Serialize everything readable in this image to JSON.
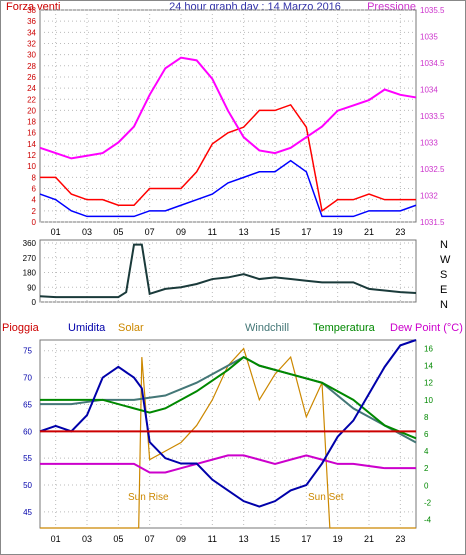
{
  "chart_data": [
    {
      "type": "line",
      "title": "24 hour graph day : 14 Marzo 2016",
      "left_axis_label": "Forza venti",
      "right_axis_label": "Pressione",
      "x_ticks": [
        "01",
        "03",
        "05",
        "07",
        "09",
        "11",
        "13",
        "15",
        "17",
        "19",
        "21",
        "23"
      ],
      "y_left_ticks": [
        "0",
        "2",
        "4",
        "6",
        "8",
        "10",
        "12",
        "14",
        "16",
        "18",
        "20",
        "22",
        "24",
        "26",
        "28",
        "30",
        "32",
        "34",
        "36",
        "38"
      ],
      "y_left_range": [
        0,
        38
      ],
      "y_right_ticks": [
        "1031.5",
        "1032",
        "1032.5",
        "1033",
        "1033.5",
        "1034",
        "1034.5",
        "1035",
        "1035.5"
      ],
      "y_right_range": [
        1031.5,
        1035.5
      ],
      "grid": true,
      "colors": {
        "gust": "#ff0000",
        "avg": "#0000ff",
        "pressure": "#ff00ff",
        "left_axis": "#cc0000",
        "right_axis": "#cc33cc"
      },
      "series": [
        {
          "hour": [
            0,
            1,
            2,
            3,
            4,
            5,
            6,
            7,
            8,
            9,
            10,
            11,
            12,
            13,
            14,
            15,
            16,
            17,
            18,
            19,
            20,
            21,
            22,
            23,
            24
          ],
          "values": [
            8,
            8,
            5,
            4,
            4,
            3,
            3,
            6,
            6,
            6,
            9,
            14,
            16,
            17,
            20,
            20,
            21,
            17,
            2,
            4,
            4,
            5,
            4,
            4,
            4
          ]
        },
        {
          "hour": [
            0,
            1,
            2,
            3,
            4,
            5,
            6,
            7,
            8,
            9,
            10,
            11,
            12,
            13,
            14,
            15,
            16,
            17,
            18,
            19,
            20,
            21,
            22,
            23,
            24
          ],
          "values": [
            5,
            4,
            2,
            1,
            1,
            1,
            1,
            2,
            2,
            3,
            4,
            5,
            7,
            8,
            9,
            9,
            11,
            9,
            1,
            1,
            1,
            2,
            2,
            2,
            3
          ]
        },
        {
          "hour": [
            0,
            1,
            2,
            3,
            4,
            5,
            6,
            7,
            8,
            9,
            10,
            11,
            12,
            13,
            14,
            15,
            16,
            17,
            18,
            19,
            20,
            21,
            22,
            23,
            24
          ],
          "values": [
            1032.9,
            1032.8,
            1032.7,
            1032.75,
            1032.8,
            1033.0,
            1033.3,
            1033.9,
            1034.4,
            1034.6,
            1034.55,
            1034.2,
            1033.6,
            1033.1,
            1032.85,
            1032.8,
            1032.9,
            1033.1,
            1033.3,
            1033.6,
            1033.7,
            1033.8,
            1034.0,
            1033.9,
            1033.85
          ]
        }
      ]
    },
    {
      "type": "line",
      "y_ticks": [
        "0",
        "90",
        "180",
        "270",
        "360"
      ],
      "y_range": [
        0,
        360
      ],
      "compass_labels": [
        "N",
        "W",
        "S",
        "E",
        "N"
      ],
      "line_color": "#1a3a3a",
      "series": [
        {
          "hour": [
            0,
            1,
            2,
            3,
            4,
            5,
            5.5,
            6,
            6.5,
            7,
            8,
            9,
            10,
            11,
            12,
            13,
            14,
            15,
            16,
            17,
            18,
            19,
            20,
            21,
            22,
            23,
            24
          ],
          "values": [
            35,
            30,
            30,
            30,
            30,
            30,
            60,
            350,
            350,
            50,
            80,
            90,
            110,
            140,
            150,
            170,
            140,
            150,
            140,
            130,
            120,
            120,
            120,
            80,
            70,
            60,
            55
          ]
        }
      ]
    },
    {
      "type": "line",
      "legend": [
        "Pioggia",
        "Umidita",
        "Solar",
        "Windchill",
        "Temperatura",
        "Dew Point (°C)"
      ],
      "legend_colors": [
        "#cc0000",
        "#0000aa",
        "#cc8800",
        "#447777",
        "#008800",
        "#cc00cc"
      ],
      "left_axis_ticks": [
        "45",
        "50",
        "55",
        "60",
        "65",
        "70",
        "75"
      ],
      "left_axis_range": [
        42,
        77
      ],
      "right_axis_ticks": [
        "-4",
        "-2",
        "0",
        "2",
        "4",
        "6",
        "8",
        "10",
        "12",
        "14",
        "16"
      ],
      "right_axis_range": [
        -5,
        17
      ],
      "x_ticks": [
        "01",
        "03",
        "05",
        "07",
        "09",
        "11",
        "13",
        "15",
        "17",
        "19",
        "21",
        "23"
      ],
      "annotations": [
        "Sun Rise",
        "Sun Set"
      ],
      "series": [
        {
          "name": "Pioggia",
          "hour": [
            0,
            24
          ],
          "values": [
            60,
            60
          ]
        },
        {
          "name": "Umidita",
          "hour": [
            0,
            1,
            2,
            3,
            4,
            5,
            6,
            6.5,
            7,
            8,
            9,
            10,
            11,
            12,
            13,
            14,
            15,
            16,
            17,
            18,
            19,
            20,
            21,
            22,
            23,
            24
          ],
          "values": [
            60,
            61,
            60,
            63,
            70,
            72,
            70,
            68,
            58,
            55,
            54,
            54,
            51,
            49,
            47,
            46,
            47,
            49,
            50,
            54,
            59,
            62,
            67,
            72,
            76,
            77
          ]
        },
        {
          "name": "Solar",
          "hour": [
            0,
            6.3,
            6.5,
            7,
            8,
            9,
            10,
            11,
            12,
            13,
            14,
            15,
            16,
            17,
            18,
            18.5,
            24
          ],
          "values": [
            -5,
            -5,
            15,
            3,
            4,
            5,
            7,
            10,
            14,
            16,
            10,
            13,
            15,
            8,
            12,
            -5,
            -5
          ]
        },
        {
          "name": "Windchill",
          "hour": [
            0,
            2,
            4,
            6,
            8,
            10,
            12,
            13,
            14,
            16,
            18,
            20,
            22,
            24
          ],
          "values": [
            9.5,
            9.5,
            10,
            10,
            10.5,
            12,
            14,
            15,
            14,
            13,
            12,
            9,
            7,
            5
          ]
        },
        {
          "name": "Temperatura",
          "hour": [
            0,
            2,
            4,
            6,
            7,
            8,
            10,
            12,
            13,
            14,
            16,
            18,
            20,
            22,
            24
          ],
          "values": [
            10,
            10,
            10,
            9,
            8.5,
            9,
            11,
            13.5,
            15,
            14,
            13,
            12,
            10,
            7,
            5.5
          ]
        },
        {
          "name": "Dew Point (°C)",
          "hour": [
            0,
            2,
            4,
            6,
            7,
            8,
            9,
            10,
            11,
            12,
            13,
            14,
            15,
            16,
            17,
            18,
            19,
            20,
            22,
            24
          ],
          "values": [
            2.5,
            2.5,
            2.5,
            2.5,
            1.5,
            1.5,
            2,
            2.5,
            3,
            3.5,
            3.5,
            3,
            2.5,
            3,
            3.5,
            3,
            2.5,
            2.5,
            2,
            2
          ]
        }
      ]
    }
  ]
}
